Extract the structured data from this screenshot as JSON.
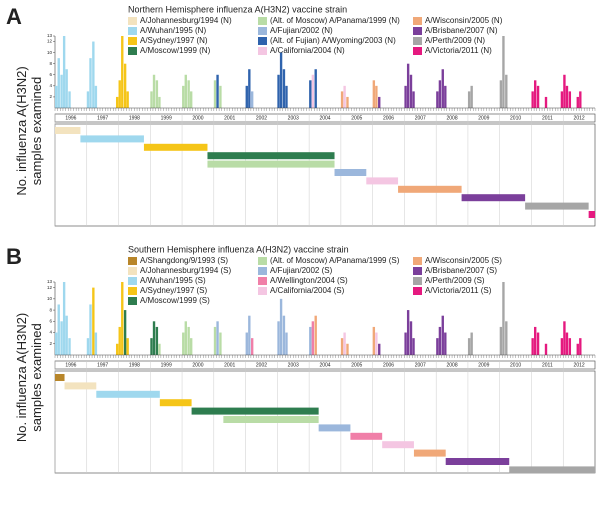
{
  "chart_data": [
    {
      "type": "bar",
      "panel": "A",
      "title": "Northern Hemisphere influenza A(H3N2) vaccine strain",
      "ylabel_lines": [
        "No. influenza A(H3N2)",
        "samples examined"
      ],
      "ylim": [
        0,
        13
      ],
      "yticks": [
        2,
        4,
        6,
        8,
        10,
        12,
        13
      ],
      "xlim": [
        1996,
        2013
      ],
      "years": [
        1996,
        1997,
        1998,
        1999,
        2000,
        2001,
        2002,
        2003,
        2004,
        2005,
        2006,
        2007,
        2008,
        2009,
        2010,
        2011,
        2012
      ],
      "series": [
        {
          "name": "A/Johannesburg/1994 (N)",
          "color": "#f3e3bf"
        },
        {
          "name": "A/Wuhan/1995 (N)",
          "color": "#9fd8ee"
        },
        {
          "name": "A/Sydney/1997 (N)",
          "color": "#f5c518"
        },
        {
          "name": "A/Moscow/1999 (N)",
          "color": "#2e7d4f"
        },
        {
          "name": "(Alt. of Moscow) A/Panama/1999 (N)",
          "color": "#b9dca6"
        },
        {
          "name": "A/Fujian/2002 (N)",
          "color": "#9bb7dc"
        },
        {
          "name": "(Alt. of Fujian) A/Wyoming/2003 (N)",
          "color": "#2f63ad"
        },
        {
          "name": "A/California/2004 (N)",
          "color": "#f4c6e2"
        },
        {
          "name": "A/Wisconsin/2005 (N)",
          "color": "#f0a878"
        },
        {
          "name": "A/Brisbane/2007 (N)",
          "color": "#7b3f9b"
        },
        {
          "name": "A/Perth/2009 (N)",
          "color": "#a6a6a6"
        },
        {
          "name": "A/Victoria/2011 (N)",
          "color": "#e5197f"
        }
      ],
      "bars": [
        {
          "strain": 1,
          "x": 1996.0,
          "value": 4
        },
        {
          "strain": 1,
          "x": 1996.08,
          "value": 9
        },
        {
          "strain": 1,
          "x": 1996.17,
          "value": 6
        },
        {
          "strain": 1,
          "x": 1996.25,
          "value": 13
        },
        {
          "strain": 1,
          "x": 1996.33,
          "value": 7
        },
        {
          "strain": 1,
          "x": 1996.42,
          "value": 3
        },
        {
          "strain": 1,
          "x": 1997.0,
          "value": 3
        },
        {
          "strain": 1,
          "x": 1997.08,
          "value": 9
        },
        {
          "strain": 1,
          "x": 1997.17,
          "value": 12
        },
        {
          "strain": 1,
          "x": 1997.25,
          "value": 4
        },
        {
          "strain": 2,
          "x": 1997.92,
          "value": 2
        },
        {
          "strain": 2,
          "x": 1998.0,
          "value": 5
        },
        {
          "strain": 2,
          "x": 1998.08,
          "value": 13
        },
        {
          "strain": 2,
          "x": 1998.17,
          "value": 8
        },
        {
          "strain": 2,
          "x": 1998.25,
          "value": 3
        },
        {
          "strain": 4,
          "x": 1999.0,
          "value": 3
        },
        {
          "strain": 4,
          "x": 1999.08,
          "value": 6
        },
        {
          "strain": 4,
          "x": 1999.17,
          "value": 5
        },
        {
          "strain": 4,
          "x": 1999.25,
          "value": 2
        },
        {
          "strain": 4,
          "x": 2000.0,
          "value": 4
        },
        {
          "strain": 4,
          "x": 2000.08,
          "value": 6
        },
        {
          "strain": 4,
          "x": 2000.17,
          "value": 5
        },
        {
          "strain": 4,
          "x": 2000.25,
          "value": 3
        },
        {
          "strain": 4,
          "x": 2001.0,
          "value": 5
        },
        {
          "strain": 6,
          "x": 2001.08,
          "value": 6
        },
        {
          "strain": 4,
          "x": 2001.17,
          "value": 4
        },
        {
          "strain": 6,
          "x": 2002.0,
          "value": 4
        },
        {
          "strain": 6,
          "x": 2002.08,
          "value": 7
        },
        {
          "strain": 5,
          "x": 2002.17,
          "value": 3
        },
        {
          "strain": 6,
          "x": 2003.0,
          "value": 6
        },
        {
          "strain": 6,
          "x": 2003.08,
          "value": 10
        },
        {
          "strain": 6,
          "x": 2003.17,
          "value": 7
        },
        {
          "strain": 6,
          "x": 2003.25,
          "value": 4
        },
        {
          "strain": 6,
          "x": 2004.0,
          "value": 5
        },
        {
          "strain": 7,
          "x": 2004.08,
          "value": 6
        },
        {
          "strain": 6,
          "x": 2004.17,
          "value": 7
        },
        {
          "strain": 8,
          "x": 2005.0,
          "value": 3
        },
        {
          "strain": 7,
          "x": 2005.08,
          "value": 4
        },
        {
          "strain": 8,
          "x": 2005.17,
          "value": 2
        },
        {
          "strain": 8,
          "x": 2006.0,
          "value": 5
        },
        {
          "strain": 8,
          "x": 2006.08,
          "value": 4
        },
        {
          "strain": 9,
          "x": 2006.17,
          "value": 2
        },
        {
          "strain": 9,
          "x": 2007.0,
          "value": 4
        },
        {
          "strain": 9,
          "x": 2007.08,
          "value": 8
        },
        {
          "strain": 9,
          "x": 2007.17,
          "value": 6
        },
        {
          "strain": 9,
          "x": 2007.25,
          "value": 3
        },
        {
          "strain": 9,
          "x": 2008.0,
          "value": 3
        },
        {
          "strain": 9,
          "x": 2008.08,
          "value": 5
        },
        {
          "strain": 9,
          "x": 2008.17,
          "value": 7
        },
        {
          "strain": 9,
          "x": 2008.25,
          "value": 4
        },
        {
          "strain": 10,
          "x": 2009.0,
          "value": 3
        },
        {
          "strain": 10,
          "x": 2009.08,
          "value": 4
        },
        {
          "strain": 10,
          "x": 2010.0,
          "value": 5
        },
        {
          "strain": 10,
          "x": 2010.08,
          "value": 13
        },
        {
          "strain": 10,
          "x": 2010.17,
          "value": 6
        },
        {
          "strain": 11,
          "x": 2011.0,
          "value": 3
        },
        {
          "strain": 11,
          "x": 2011.08,
          "value": 5
        },
        {
          "strain": 11,
          "x": 2011.17,
          "value": 4
        },
        {
          "strain": 11,
          "x": 2011.42,
          "value": 2
        },
        {
          "strain": 11,
          "x": 2011.92,
          "value": 3
        },
        {
          "strain": 11,
          "x": 2012.0,
          "value": 6
        },
        {
          "strain": 11,
          "x": 2012.08,
          "value": 4
        },
        {
          "strain": 11,
          "x": 2012.17,
          "value": 3
        },
        {
          "strain": 11,
          "x": 2012.42,
          "value": 2
        },
        {
          "strain": 11,
          "x": 2012.5,
          "value": 3
        }
      ],
      "timeline": [
        {
          "strain": 0,
          "start": 1996.0,
          "end": 1996.8
        },
        {
          "strain": 1,
          "start": 1996.8,
          "end": 1998.8
        },
        {
          "strain": 2,
          "start": 1998.8,
          "end": 2000.8
        },
        {
          "strain": 3,
          "start": 2000.8,
          "end": 2004.8
        },
        {
          "strain": 4,
          "start": 2000.8,
          "end": 2004.8
        },
        {
          "strain": 5,
          "start": 2004.8,
          "end": 2005.8
        },
        {
          "strain": 7,
          "start": 2005.8,
          "end": 2006.8
        },
        {
          "strain": 8,
          "start": 2006.8,
          "end": 2008.8
        },
        {
          "strain": 9,
          "start": 2008.8,
          "end": 2010.8
        },
        {
          "strain": 10,
          "start": 2010.8,
          "end": 2012.8
        },
        {
          "strain": 11,
          "start": 2012.8,
          "end": 2013.0
        }
      ]
    },
    {
      "type": "bar",
      "panel": "B",
      "title": "Southern Hemisphere influenza A(H3N2) vaccine strain",
      "ylabel_lines": [
        "No. influenza A(H3N2)",
        "samples examined"
      ],
      "ylim": [
        0,
        13
      ],
      "yticks": [
        2,
        4,
        6,
        8,
        10,
        12,
        13
      ],
      "xlim": [
        1996,
        2013
      ],
      "years": [
        1996,
        1997,
        1998,
        1999,
        2000,
        2001,
        2002,
        2003,
        2004,
        2005,
        2006,
        2007,
        2008,
        2009,
        2010,
        2011,
        2012
      ],
      "series": [
        {
          "name": "A/Shangdong/9/1993 (S)",
          "color": "#b8862a"
        },
        {
          "name": "A/Johannesburg/1994 (S)",
          "color": "#f3e3bf"
        },
        {
          "name": "A/Wuhan/1995 (S)",
          "color": "#9fd8ee"
        },
        {
          "name": "A/Sydney/1997 (S)",
          "color": "#f5c518"
        },
        {
          "name": "A/Moscow/1999 (S)",
          "color": "#2e7d4f"
        },
        {
          "name": "(Alt. of Moscow) A/Panama/1999 (S)",
          "color": "#b9dca6"
        },
        {
          "name": "A/Fujian/2002 (S)",
          "color": "#9bb7dc"
        },
        {
          "name": "A/Wellington/2004 (S)",
          "color": "#f07fa8"
        },
        {
          "name": "A/California/2004 (S)",
          "color": "#f4c6e2"
        },
        {
          "name": "A/Wisconsin/2005 (S)",
          "color": "#f0a878"
        },
        {
          "name": "A/Brisbane/2007 (S)",
          "color": "#7b3f9b"
        },
        {
          "name": "A/Perth/2009 (S)",
          "color": "#a6a6a6"
        },
        {
          "name": "A/Victoria/2011 (S)",
          "color": "#e5197f"
        }
      ],
      "bars": [
        {
          "strain": 2,
          "x": 1996.0,
          "value": 4
        },
        {
          "strain": 2,
          "x": 1996.08,
          "value": 9
        },
        {
          "strain": 2,
          "x": 1996.17,
          "value": 6
        },
        {
          "strain": 2,
          "x": 1996.25,
          "value": 13
        },
        {
          "strain": 2,
          "x": 1996.33,
          "value": 7
        },
        {
          "strain": 2,
          "x": 1996.42,
          "value": 3
        },
        {
          "strain": 2,
          "x": 1997.0,
          "value": 3
        },
        {
          "strain": 2,
          "x": 1997.08,
          "value": 9
        },
        {
          "strain": 3,
          "x": 1997.17,
          "value": 12
        },
        {
          "strain": 2,
          "x": 1997.25,
          "value": 4
        },
        {
          "strain": 3,
          "x": 1997.92,
          "value": 2
        },
        {
          "strain": 3,
          "x": 1998.0,
          "value": 5
        },
        {
          "strain": 3,
          "x": 1998.08,
          "value": 13
        },
        {
          "strain": 4,
          "x": 1998.17,
          "value": 8
        },
        {
          "strain": 3,
          "x": 1998.25,
          "value": 3
        },
        {
          "strain": 4,
          "x": 1999.0,
          "value": 3
        },
        {
          "strain": 4,
          "x": 1999.08,
          "value": 6
        },
        {
          "strain": 4,
          "x": 1999.17,
          "value": 5
        },
        {
          "strain": 5,
          "x": 1999.25,
          "value": 2
        },
        {
          "strain": 5,
          "x": 2000.0,
          "value": 4
        },
        {
          "strain": 5,
          "x": 2000.08,
          "value": 6
        },
        {
          "strain": 5,
          "x": 2000.17,
          "value": 5
        },
        {
          "strain": 5,
          "x": 2000.25,
          "value": 3
        },
        {
          "strain": 5,
          "x": 2001.0,
          "value": 5
        },
        {
          "strain": 6,
          "x": 2001.08,
          "value": 6
        },
        {
          "strain": 5,
          "x": 2001.17,
          "value": 4
        },
        {
          "strain": 6,
          "x": 2002.0,
          "value": 4
        },
        {
          "strain": 6,
          "x": 2002.08,
          "value": 7
        },
        {
          "strain": 7,
          "x": 2002.17,
          "value": 3
        },
        {
          "strain": 6,
          "x": 2003.0,
          "value": 6
        },
        {
          "strain": 6,
          "x": 2003.08,
          "value": 10
        },
        {
          "strain": 6,
          "x": 2003.17,
          "value": 7
        },
        {
          "strain": 6,
          "x": 2003.25,
          "value": 4
        },
        {
          "strain": 6,
          "x": 2004.0,
          "value": 5
        },
        {
          "strain": 7,
          "x": 2004.08,
          "value": 6
        },
        {
          "strain": 9,
          "x": 2004.17,
          "value": 7
        },
        {
          "strain": 9,
          "x": 2005.0,
          "value": 3
        },
        {
          "strain": 8,
          "x": 2005.08,
          "value": 4
        },
        {
          "strain": 9,
          "x": 2005.17,
          "value": 2
        },
        {
          "strain": 9,
          "x": 2006.0,
          "value": 5
        },
        {
          "strain": 8,
          "x": 2006.08,
          "value": 4
        },
        {
          "strain": 10,
          "x": 2006.17,
          "value": 2
        },
        {
          "strain": 10,
          "x": 2007.0,
          "value": 4
        },
        {
          "strain": 10,
          "x": 2007.08,
          "value": 8
        },
        {
          "strain": 10,
          "x": 2007.17,
          "value": 6
        },
        {
          "strain": 10,
          "x": 2007.25,
          "value": 3
        },
        {
          "strain": 10,
          "x": 2008.0,
          "value": 3
        },
        {
          "strain": 10,
          "x": 2008.08,
          "value": 5
        },
        {
          "strain": 10,
          "x": 2008.17,
          "value": 7
        },
        {
          "strain": 10,
          "x": 2008.25,
          "value": 4
        },
        {
          "strain": 11,
          "x": 2009.0,
          "value": 3
        },
        {
          "strain": 11,
          "x": 2009.08,
          "value": 4
        },
        {
          "strain": 11,
          "x": 2010.0,
          "value": 5
        },
        {
          "strain": 11,
          "x": 2010.08,
          "value": 13
        },
        {
          "strain": 11,
          "x": 2010.17,
          "value": 6
        },
        {
          "strain": 12,
          "x": 2011.0,
          "value": 3
        },
        {
          "strain": 12,
          "x": 2011.08,
          "value": 5
        },
        {
          "strain": 12,
          "x": 2011.17,
          "value": 4
        },
        {
          "strain": 12,
          "x": 2011.42,
          "value": 2
        },
        {
          "strain": 12,
          "x": 2011.92,
          "value": 3
        },
        {
          "strain": 12,
          "x": 2012.0,
          "value": 6
        },
        {
          "strain": 12,
          "x": 2012.08,
          "value": 4
        },
        {
          "strain": 12,
          "x": 2012.17,
          "value": 3
        },
        {
          "strain": 12,
          "x": 2012.42,
          "value": 2
        },
        {
          "strain": 12,
          "x": 2012.5,
          "value": 3
        }
      ],
      "timeline": [
        {
          "strain": 0,
          "start": 1996.0,
          "end": 1996.3
        },
        {
          "strain": 1,
          "start": 1996.3,
          "end": 1997.3
        },
        {
          "strain": 2,
          "start": 1997.3,
          "end": 1999.3
        },
        {
          "strain": 3,
          "start": 1999.3,
          "end": 2000.3
        },
        {
          "strain": 4,
          "start": 2000.3,
          "end": 2004.3
        },
        {
          "strain": 5,
          "start": 2001.3,
          "end": 2004.3
        },
        {
          "strain": 6,
          "start": 2004.3,
          "end": 2005.3
        },
        {
          "strain": 7,
          "start": 2005.3,
          "end": 2006.3
        },
        {
          "strain": 8,
          "start": 2006.3,
          "end": 2007.3
        },
        {
          "strain": 9,
          "start": 2007.3,
          "end": 2008.3
        },
        {
          "strain": 10,
          "start": 2008.3,
          "end": 2010.3
        },
        {
          "strain": 11,
          "start": 2010.3,
          "end": 2013.0
        }
      ]
    }
  ]
}
